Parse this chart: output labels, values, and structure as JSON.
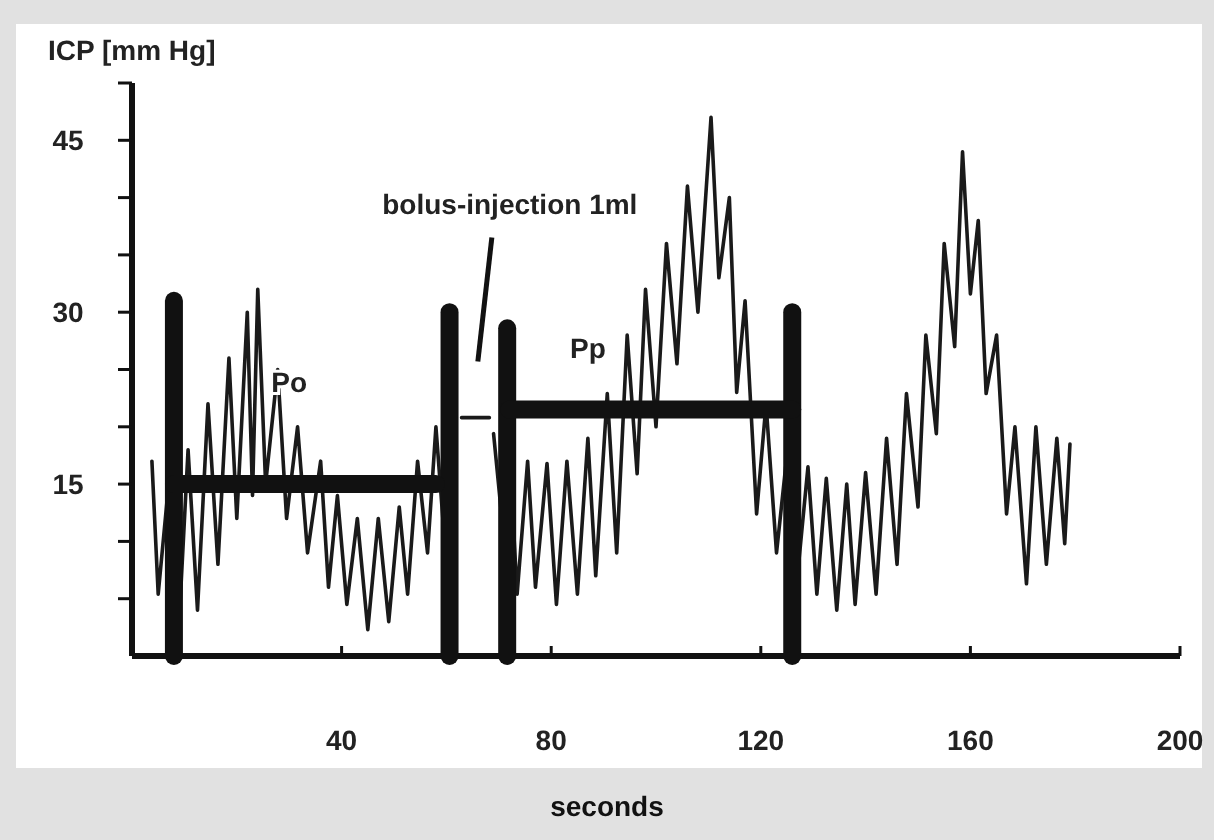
{
  "chart_data": {
    "type": "line",
    "ylabel": "ICP [mm Hg]",
    "xlabel": "seconds",
    "xlim": [
      0,
      200
    ],
    "xticks": [
      40,
      80,
      120,
      160,
      200
    ],
    "ylim": [
      0,
      50
    ],
    "yticks": [
      {
        "value": 5,
        "label": null
      },
      {
        "value": 10,
        "label": null
      },
      15,
      {
        "value": 20,
        "label": null
      },
      {
        "value": 25,
        "label": null
      },
      30,
      {
        "value": 35,
        "label": null
      },
      {
        "value": 40,
        "label": null
      },
      45,
      {
        "value": 50,
        "label": null
      }
    ],
    "grid": false,
    "marker": "none",
    "line_style": "solid",
    "annotations": [
      "bolus-injection 1ml",
      "Po",
      "Pp"
    ],
    "series": [
      {
        "color": "#1a1a1a",
        "x": [
          3.8,
          5,
          7.5,
          9,
          10.7,
          12.5,
          14.5,
          16.4,
          18.5,
          20,
          22,
          23,
          24,
          25.5,
          27.8,
          29.5,
          31.6,
          33.5,
          36,
          37.5,
          39.2,
          41,
          43,
          45,
          47,
          49,
          51,
          52.6,
          54.5,
          56.4,
          58,
          59.4,
          60,
          62.9,
          68.2,
          68.6,
          69,
          70.5,
          72,
          73.5,
          75.5,
          77,
          79.2,
          81,
          83,
          85,
          87,
          88.5,
          90.7,
          92.5,
          94.5,
          96.4,
          98,
          100,
          102,
          104,
          106,
          108,
          110.5,
          112,
          114,
          115.4,
          117,
          119.2,
          121,
          123,
          125,
          127,
          129,
          130.7,
          132.5,
          134.5,
          136.4,
          138,
          140,
          142,
          144,
          146,
          147.8,
          150,
          151.5,
          153.5,
          155,
          157,
          158.5,
          160,
          161.5,
          163,
          165,
          166.9,
          168.5,
          170.7,
          172.5,
          174.5,
          176.5,
          178,
          179
        ],
        "values": [
          17,
          5.4,
          17.5,
          3,
          18,
          4,
          22,
          8,
          26,
          12,
          30,
          14,
          32,
          15,
          25,
          12,
          20,
          9,
          17,
          6,
          14,
          4.5,
          12,
          2.3,
          12,
          3,
          13,
          5.4,
          17,
          9,
          20,
          11.5,
          null,
          20.8,
          20.8,
          null,
          19.4,
          12.4,
          18,
          5.4,
          17,
          6,
          16.8,
          4.5,
          17,
          5.4,
          19,
          7,
          22.9,
          9,
          28,
          15.9,
          32,
          20,
          36,
          25.5,
          41,
          30,
          47,
          33,
          40,
          23,
          31,
          12.4,
          22,
          9,
          17.6,
          7,
          16.5,
          5.4,
          15.5,
          4,
          15,
          4.5,
          16,
          5.4,
          19,
          8,
          22.9,
          13,
          28,
          19.4,
          36,
          27,
          44,
          31.6,
          38,
          22.9,
          28,
          12.4,
          20,
          6.3,
          20,
          8,
          19,
          9.8,
          18.5
        ]
      },
      {
        "color": "#111111",
        "x": [
          8,
          8
        ],
        "values": [
          0,
          31
        ]
      },
      {
        "color": "#111111",
        "x": [
          60.6,
          60.6
        ],
        "values": [
          0,
          30
        ]
      },
      {
        "color": "#111111",
        "x": [
          71.6,
          71.6
        ],
        "values": [
          0,
          28.6
        ]
      },
      {
        "color": "#111111",
        "x": [
          126,
          126
        ],
        "values": [
          0,
          30
        ]
      },
      {
        "color": "#111111",
        "x": [
          8,
          58
        ],
        "values": [
          15,
          15
        ]
      },
      {
        "color": "#111111",
        "x": [
          72,
          126
        ],
        "values": [
          21.5,
          21.5
        ]
      }
    ]
  }
}
